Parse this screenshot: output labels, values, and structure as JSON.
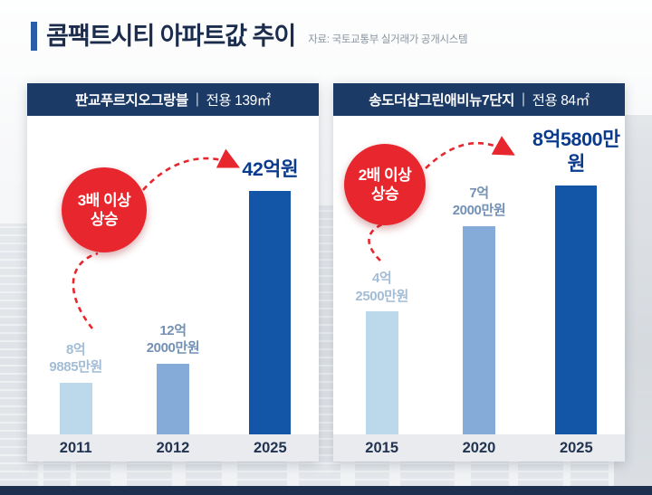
{
  "page": {
    "title": "콤팩트시티 아파트값 추이",
    "source": "자료: 국토교통부 실거래가 공개시스템",
    "divider": "|"
  },
  "colors": {
    "title_navy": "#1c2c4c",
    "panel_header_bg": "#1c3a66",
    "bar_light": "#bcd9ec",
    "bar_medium": "#85abd8",
    "bar_dark": "#1356a8",
    "badge_red": "#e8262d",
    "value_light": "#a3bdd6",
    "value_medium": "#7391b5",
    "value_dark": "#0a3a8d"
  },
  "chart_data": [
    {
      "type": "bar",
      "title": "판교푸르지오그랑블",
      "area_label": "전용 139㎡",
      "categories": [
        "2011",
        "2012",
        "2025"
      ],
      "values": [
        8.9885,
        12.2,
        42
      ],
      "value_labels": [
        [
          "8억",
          "9885만원"
        ],
        [
          "12억",
          "2000만원"
        ],
        [
          "42억원"
        ]
      ],
      "badge_lines": [
        "3배 이상",
        "상승"
      ],
      "unit": "억원",
      "xlabel": "",
      "ylabel": "",
      "ylim": [
        0,
        45
      ],
      "legend": "none",
      "grid": "off"
    },
    {
      "type": "bar",
      "title": "송도더샵그린애비뉴7단지",
      "area_label": "전용 84㎡",
      "categories": [
        "2015",
        "2020",
        "2025"
      ],
      "values": [
        4.25,
        7.2,
        8.58
      ],
      "value_labels": [
        [
          "4억",
          "2500만원"
        ],
        [
          "7억",
          "2000만원"
        ],
        [
          "8억5800만원"
        ]
      ],
      "badge_lines": [
        "2배 이상",
        "상승"
      ],
      "unit": "억원",
      "xlabel": "",
      "ylabel": "",
      "ylim": [
        0,
        9
      ],
      "legend": "none",
      "grid": "off"
    }
  ]
}
